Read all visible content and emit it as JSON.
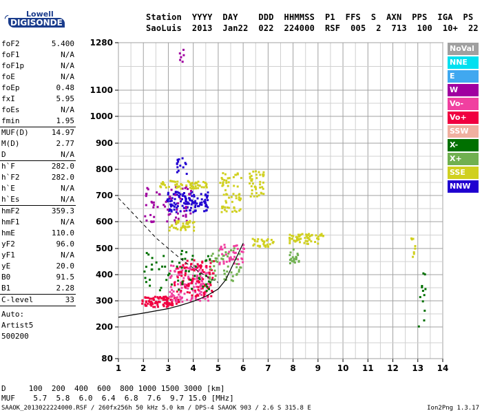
{
  "logo": {
    "line1": "Lowell",
    "line2": "DIGISONDE"
  },
  "header": {
    "row1": [
      "Station",
      "YYYY",
      "DAY",
      "DDD",
      "HHMMSS",
      "P1",
      "FFS",
      "S",
      "AXN",
      "PPS",
      "IGA",
      "PS"
    ],
    "row2": [
      "SaoLuis",
      "2013",
      "Jan22",
      "022",
      "224000",
      "RSF",
      "005",
      "2",
      "713",
      "100",
      "10+",
      "22"
    ]
  },
  "params": [
    {
      "label": "foF2",
      "value": "5.400"
    },
    {
      "label": "foF1",
      "value": "N/A"
    },
    {
      "label": "foF1p",
      "value": "N/A"
    },
    {
      "label": "foE",
      "value": "N/A"
    },
    {
      "label": "foEp",
      "value": "0.48"
    },
    {
      "label": "fxI",
      "value": "5.95"
    },
    {
      "label": "foEs",
      "value": "N/A"
    },
    {
      "label": "fmin",
      "value": "1.95"
    },
    {
      "label": "MUF(D)",
      "value": "14.97",
      "sep": true
    },
    {
      "label": "M(D)",
      "value": "2.77"
    },
    {
      "label": "D",
      "value": "N/A"
    },
    {
      "label": "h`F",
      "value": "282.0",
      "sep": true
    },
    {
      "label": "h`F2",
      "value": "282.0"
    },
    {
      "label": "h`E",
      "value": "N/A"
    },
    {
      "label": "h`Es",
      "value": "N/A"
    },
    {
      "label": "hmF2",
      "value": "359.3",
      "sep": true
    },
    {
      "label": "hmF1",
      "value": "N/A"
    },
    {
      "label": "hmE",
      "value": "110.0"
    },
    {
      "label": "yF2",
      "value": "96.0"
    },
    {
      "label": "yF1",
      "value": "N/A"
    },
    {
      "label": "yE",
      "value": "20.0"
    },
    {
      "label": "B0",
      "value": "91.5"
    },
    {
      "label": "B1",
      "value": "2.28"
    },
    {
      "label": "C-level",
      "value": "33",
      "sep": true
    }
  ],
  "auto": {
    "line1": "Auto:",
    "line2": "Artist5",
    "line3": "500200"
  },
  "legend": [
    {
      "label": "NoVal",
      "color": "#a0a0a0"
    },
    {
      "label": "NNE",
      "color": "#00e0f0"
    },
    {
      "label": "E",
      "color": "#40a8f0"
    },
    {
      "label": "W",
      "color": "#a000a0"
    },
    {
      "label": "Vo-",
      "color": "#f040a0"
    },
    {
      "label": "Vo+",
      "color": "#f00040"
    },
    {
      "label": "SSW",
      "color": "#f0b0a0"
    },
    {
      "label": "X-",
      "color": "#007000"
    },
    {
      "label": "X+",
      "color": "#70b050"
    },
    {
      "label": "SSE",
      "color": "#d0d020"
    },
    {
      "label": "NNW",
      "color": "#2000d0"
    }
  ],
  "footer": {
    "d_row": "D     100  200  400  600  800 1000 1500 3000 [km]",
    "muf_row": "MUF    5.7  5.8  6.0  6.4  6.8  7.6  9.7 15.0 [MHz]",
    "info": "SAAOK_2013022224000.RSF / 260fx256h 50 kHz 5.0 km / DPS-4 SAAOK 903 / 2.6 S 315.8 E",
    "version": "Ion2Png 1.3.17"
  },
  "chart_data": {
    "type": "scatter",
    "xlim": [
      1,
      14
    ],
    "ylim": [
      80,
      1300
    ],
    "x_ticks": [
      1,
      2,
      3,
      4,
      5,
      6,
      7,
      8,
      9,
      10,
      11,
      12,
      13,
      14
    ],
    "x_tick_labels": [
      "1",
      "2",
      "3",
      "4",
      "5",
      "6",
      "7",
      "8",
      "9",
      "10",
      "11",
      "12",
      "13",
      "14"
    ],
    "y_ticks": [
      80,
      200,
      300,
      400,
      500,
      600,
      700,
      800,
      900,
      1000,
      1100,
      1280
    ],
    "y_tick_labels": [
      "80",
      "200",
      "300",
      "400",
      "500",
      "600",
      "700",
      "800",
      "900",
      "1000",
      "1100",
      "1280"
    ],
    "grid": true,
    "profile_curve": [
      [
        1.0,
        237
      ],
      [
        2.0,
        253
      ],
      [
        3.0,
        270
      ],
      [
        3.5,
        283
      ],
      [
        4.0,
        298
      ],
      [
        4.5,
        317
      ],
      [
        5.0,
        345
      ],
      [
        5.3,
        380
      ],
      [
        5.5,
        420
      ],
      [
        5.8,
        480
      ],
      [
        6.0,
        520
      ]
    ],
    "profile_dashed": [
      [
        1.0,
        690
      ],
      [
        1.5,
        640
      ],
      [
        2.0,
        590
      ],
      [
        2.5,
        540
      ],
      [
        3.0,
        500
      ],
      [
        3.5,
        460
      ],
      [
        4.0,
        425
      ],
      [
        4.5,
        395
      ],
      [
        5.0,
        370
      ]
    ],
    "clusters": [
      {
        "color": "#f00040",
        "x": [
          1.9,
          3.4
        ],
        "y": [
          280,
          320
        ],
        "n": 90
      },
      {
        "color": "#f040a0",
        "x": [
          3.0,
          4.6
        ],
        "y": [
          300,
          440
        ],
        "n": 140
      },
      {
        "color": "#f00040",
        "x": [
          3.2,
          4.8
        ],
        "y": [
          320,
          460
        ],
        "n": 90
      },
      {
        "color": "#007000",
        "x": [
          2.0,
          4.8
        ],
        "y": [
          340,
          500
        ],
        "n": 60
      },
      {
        "color": "#70b050",
        "x": [
          4.6,
          5.9
        ],
        "y": [
          380,
          510
        ],
        "n": 50
      },
      {
        "color": "#f040a0",
        "x": [
          5.0,
          6.0
        ],
        "y": [
          440,
          520
        ],
        "n": 40
      },
      {
        "color": "#2000d0",
        "x": [
          2.9,
          4.6
        ],
        "y": [
          640,
          720
        ],
        "n": 120
      },
      {
        "color": "#a000a0",
        "x": [
          2.0,
          4.0
        ],
        "y": [
          600,
          740
        ],
        "n": 60
      },
      {
        "color": "#d0d020",
        "x": [
          2.5,
          4.5
        ],
        "y": [
          730,
          760
        ],
        "n": 60
      },
      {
        "color": "#d0d020",
        "x": [
          3.0,
          4.0
        ],
        "y": [
          570,
          610
        ],
        "n": 40
      },
      {
        "color": "#d0d020",
        "x": [
          5.0,
          5.9
        ],
        "y": [
          640,
          790
        ],
        "n": 60
      },
      {
        "color": "#d0d020",
        "x": [
          6.2,
          6.8
        ],
        "y": [
          700,
          800
        ],
        "n": 40
      },
      {
        "color": "#d0d020",
        "x": [
          6.3,
          7.2
        ],
        "y": [
          510,
          540
        ],
        "n": 30
      },
      {
        "color": "#d0d020",
        "x": [
          7.8,
          9.2
        ],
        "y": [
          520,
          560
        ],
        "n": 60
      },
      {
        "color": "#70b050",
        "x": [
          7.8,
          8.2
        ],
        "y": [
          440,
          500
        ],
        "n": 20
      },
      {
        "color": "#2000d0",
        "x": [
          3.3,
          3.7
        ],
        "y": [
          780,
          850
        ],
        "n": 15
      },
      {
        "color": "#a000a0",
        "x": [
          3.4,
          3.6
        ],
        "y": [
          1180,
          1260
        ],
        "n": 6
      },
      {
        "color": "#007000",
        "x": [
          13.0,
          13.3
        ],
        "y": [
          170,
          440
        ],
        "n": 12
      },
      {
        "color": "#d0d020",
        "x": [
          12.7,
          12.9
        ],
        "y": [
          460,
          590
        ],
        "n": 8
      }
    ]
  }
}
